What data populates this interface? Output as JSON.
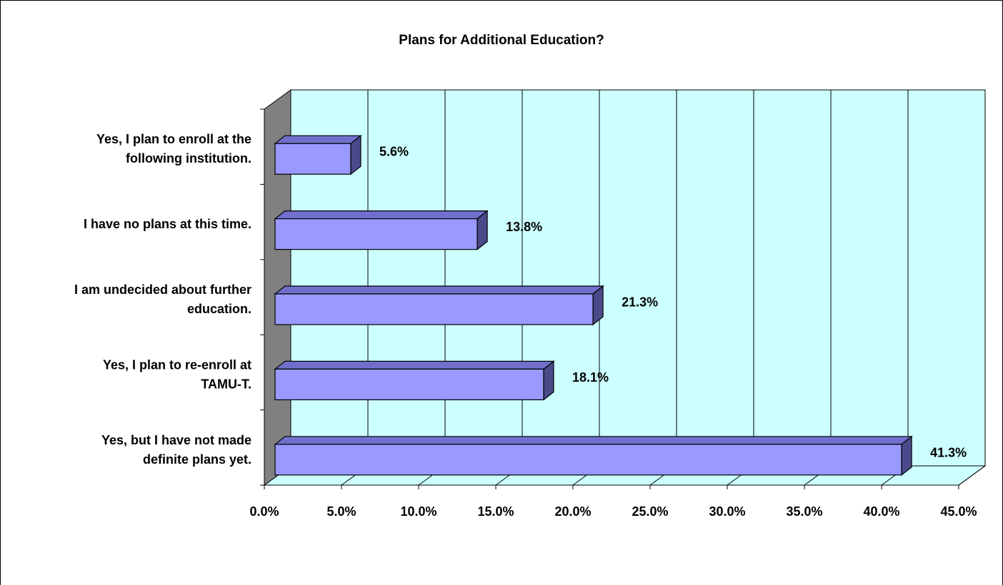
{
  "chart_data": {
    "type": "bar",
    "orientation": "horizontal",
    "title": "Plans for Additional Education?",
    "categories": [
      [
        "Yes, I plan to enroll at the",
        "following institution."
      ],
      [
        "I have no plans at this time."
      ],
      [
        "I am undecided about further",
        "education."
      ],
      [
        "Yes, I plan to re-enroll at",
        "TAMU-T."
      ],
      [
        "Yes, but I have not made",
        "definite plans yet."
      ]
    ],
    "values": [
      5.6,
      13.8,
      21.3,
      18.1,
      41.3
    ],
    "data_labels": [
      "5.6%",
      "13.8%",
      "21.3%",
      "18.1%",
      "41.3%"
    ],
    "xlim": [
      0,
      45
    ],
    "xticks": [
      0,
      5,
      10,
      15,
      20,
      25,
      30,
      35,
      40,
      45
    ],
    "xtick_labels": [
      "0.0%",
      "5.0%",
      "10.0%",
      "15.0%",
      "20.0%",
      "25.0%",
      "30.0%",
      "35.0%",
      "40.0%",
      "45.0%"
    ],
    "grid": true,
    "legend": "none",
    "colors": {
      "bar_front": "#9999ff",
      "bar_top": "#7070cc",
      "bar_side": "#4a4a8a",
      "plot_back": "#ccffff",
      "left_wall": "#808080",
      "floor": "#ccffff"
    }
  }
}
